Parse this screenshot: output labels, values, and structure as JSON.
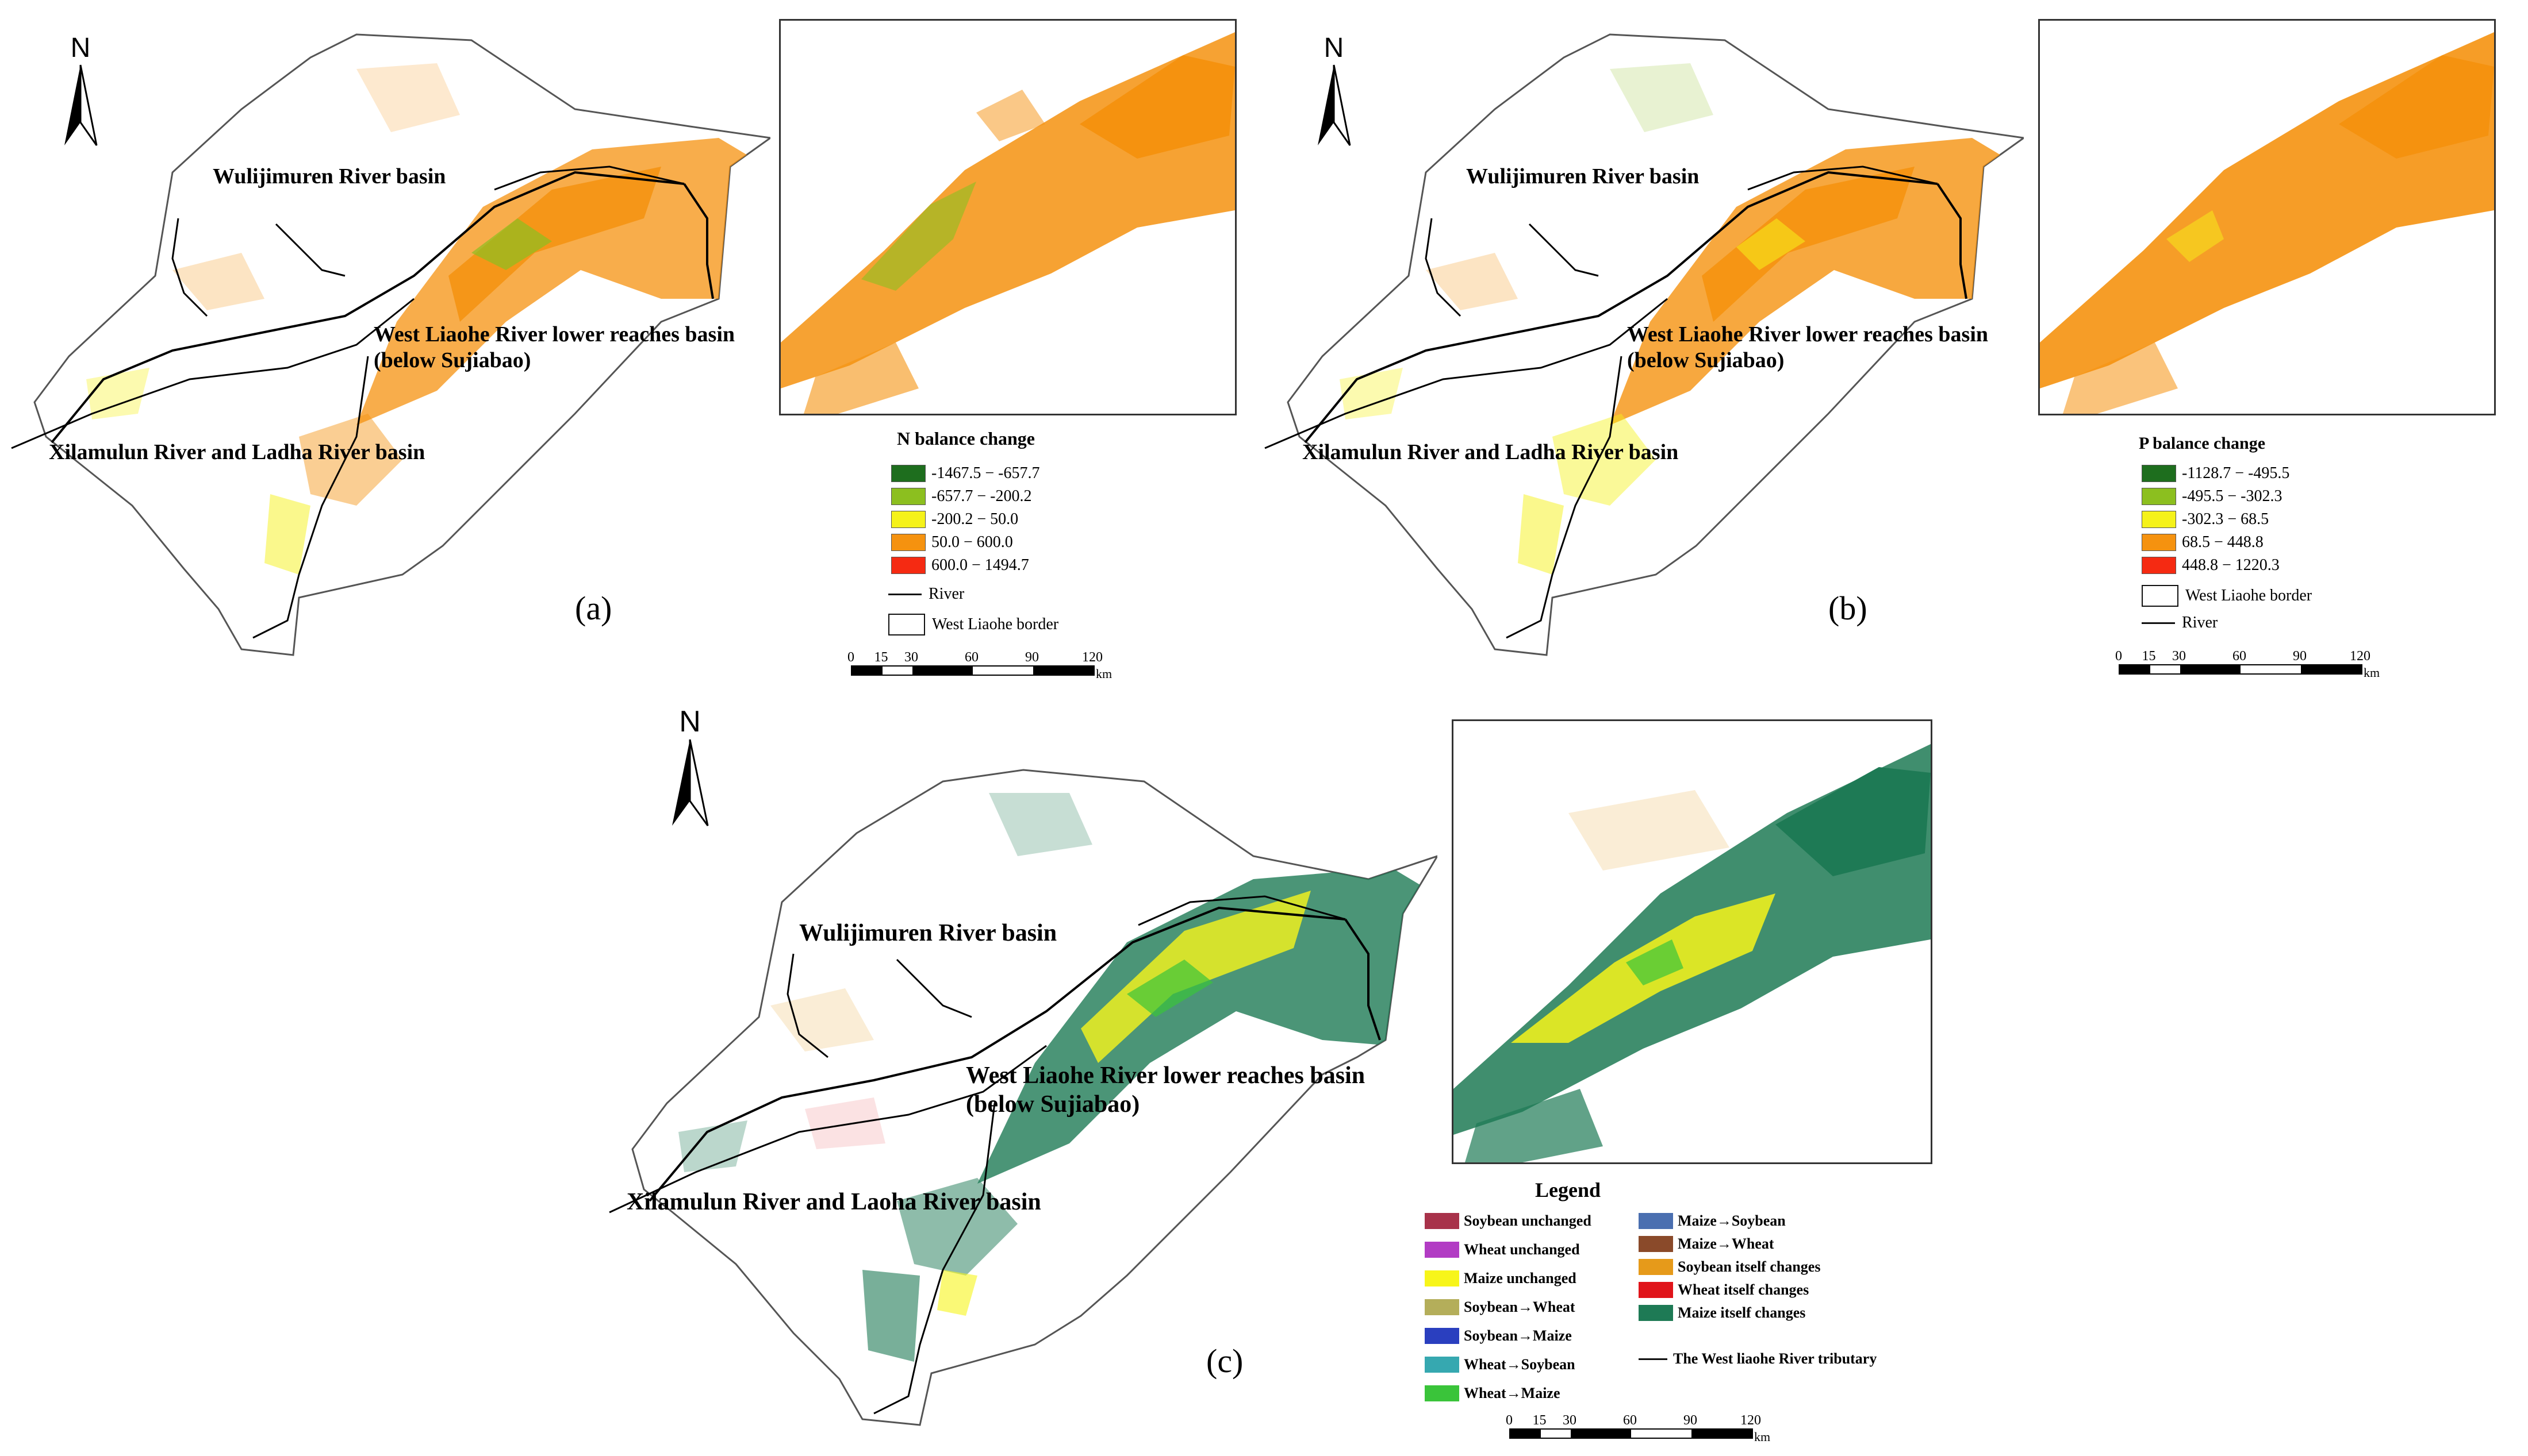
{
  "north_label": "N",
  "panel_a": {
    "label": "(a)",
    "basins": {
      "wulijimuren": "Wulijimuren River basin",
      "west_liaohe_1": "West Liaohe River lower reaches basin",
      "west_liaohe_2": "(below Sujiabao)",
      "xilamulun": "Xilamulun River and Ladha River basin"
    },
    "legend": {
      "title": "N balance change",
      "classes": [
        {
          "label": "-1467.5 − -657.7",
          "color": "#1e6e1e"
        },
        {
          "label": "-657.7 − -200.2",
          "color": "#8cbf1f"
        },
        {
          "label": "-200.2 − 50.0",
          "color": "#f5f21a"
        },
        {
          "label": "50.0 − 600.0",
          "color": "#f5920f"
        },
        {
          "label": "600.0 − 1494.7",
          "color": "#f52a12"
        }
      ],
      "river": "River",
      "border": "West Liaohe border"
    },
    "scale": {
      "ticks": [
        "0",
        "15",
        "30",
        "60",
        "90",
        "120"
      ],
      "unit": "km"
    }
  },
  "panel_b": {
    "label": "(b)",
    "basins": {
      "wulijimuren": "Wulijimuren River basin",
      "west_liaohe_1": "West Liaohe River lower reaches basin",
      "west_liaohe_2": "(below Sujiabao)",
      "xilamulun": "Xilamulun River and Ladha River basin"
    },
    "legend": {
      "title": "P balance change",
      "classes": [
        {
          "label": "-1128.7 − -495.5",
          "color": "#1e6e1e"
        },
        {
          "label": "-495.5 − -302.3",
          "color": "#8cbf1f"
        },
        {
          "label": "-302.3 − 68.5",
          "color": "#f5f21a"
        },
        {
          "label": "68.5 − 448.8",
          "color": "#f5920f"
        },
        {
          "label": "448.8 − 1220.3",
          "color": "#f52a12"
        }
      ],
      "border": "West Liaohe border",
      "river": "River"
    },
    "scale": {
      "ticks": [
        "0",
        "15",
        "30",
        "60",
        "90",
        "120"
      ],
      "unit": "km"
    }
  },
  "panel_c": {
    "label": "(c)",
    "basins": {
      "wulijimuren": "Wulijimuren River basin",
      "west_liaohe_1": "West Liaohe River lower reaches basin",
      "west_liaohe_2": "(below Sujiabao)",
      "xilamulun": "Xilamulun River and Laoha River basin"
    },
    "legend": {
      "title": "Legend",
      "col1": [
        {
          "label": "Soybean unchanged",
          "color": "#a8324a"
        },
        {
          "label": "Wheat unchanged",
          "color": "#b23cc4"
        },
        {
          "label": "Maize unchanged",
          "color": "#f7f51a"
        },
        {
          "label": "Soybean→Wheat",
          "color": "#b4ae5a"
        },
        {
          "label": "Soybean→Maize",
          "color": "#2a3fbf"
        },
        {
          "label": "Wheat→Soybean",
          "color": "#36a8b0"
        },
        {
          "label": "Wheat→Maize",
          "color": "#3ac43a"
        }
      ],
      "col2": [
        {
          "label": "Maize→Soybean",
          "color": "#4a6fb0"
        },
        {
          "label": "Maize→Wheat",
          "color": "#8a4a2a"
        },
        {
          "label": "Soybean itself changes",
          "color": "#e69a1a"
        },
        {
          "label": "Wheat itself changes",
          "color": "#e0141a"
        },
        {
          "label": "Maize itself changes",
          "color": "#1e7a55"
        }
      ],
      "tributary": "The West liaohe River tributary"
    },
    "scale": {
      "ticks": [
        "0",
        "15",
        "30",
        "60",
        "90",
        "120"
      ],
      "unit": "km"
    }
  }
}
